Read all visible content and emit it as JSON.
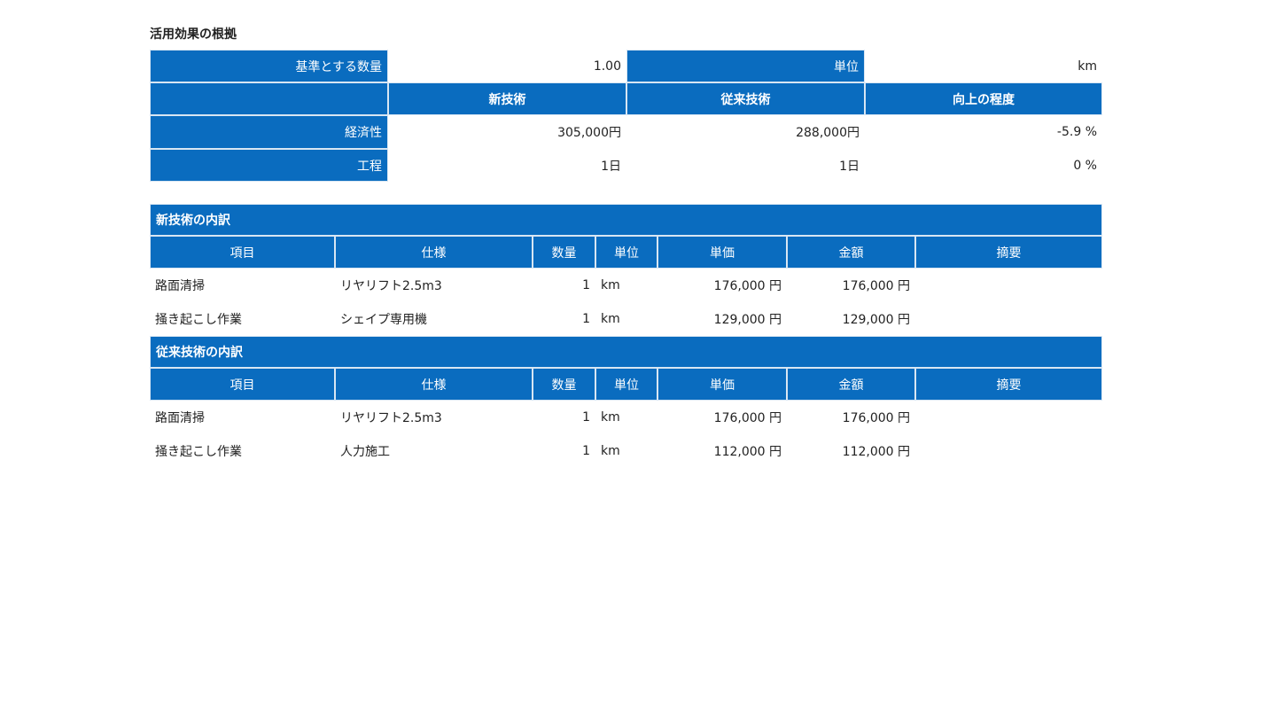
{
  "title": "活用効果の根拠",
  "summary": {
    "base_label": "基準とする数量",
    "base_value": "1.00",
    "unit_label": "単位",
    "unit_value": "km",
    "headers": [
      "新技術",
      "従来技術",
      "向上の程度"
    ],
    "rows": [
      [
        "経済性",
        "305,000円",
        "288,000円",
        "-5.9 %"
      ],
      [
        "工程",
        "1日",
        "1日",
        "0 %"
      ]
    ]
  },
  "sections": [
    {
      "title": "新技術の内訳",
      "headers": [
        "項目",
        "仕様",
        "数量",
        "単位",
        "単価",
        "金額",
        "摘要"
      ],
      "rows": [
        [
          "路面清掃",
          "リヤリフト2.5m3",
          "1",
          "km",
          "176,000 円",
          "176,000 円"
        ],
        [
          "掻き起こし作業",
          "シェイプ専用機",
          "1",
          "km",
          "129,000 円",
          "129,000 円"
        ]
      ]
    },
    {
      "title": "従来技術の内訳",
      "headers": [
        "項目",
        "仕様",
        "数量",
        "単位",
        "単価",
        "金額",
        "摘要"
      ],
      "rows": [
        [
          "路面清掃",
          "リヤリフト2.5m3",
          "1",
          "km",
          "176,000 円",
          "176,000 円"
        ],
        [
          "掻き起こし作業",
          "人力施工",
          "1",
          "km",
          "112,000 円",
          "112,000 円"
        ]
      ]
    }
  ]
}
